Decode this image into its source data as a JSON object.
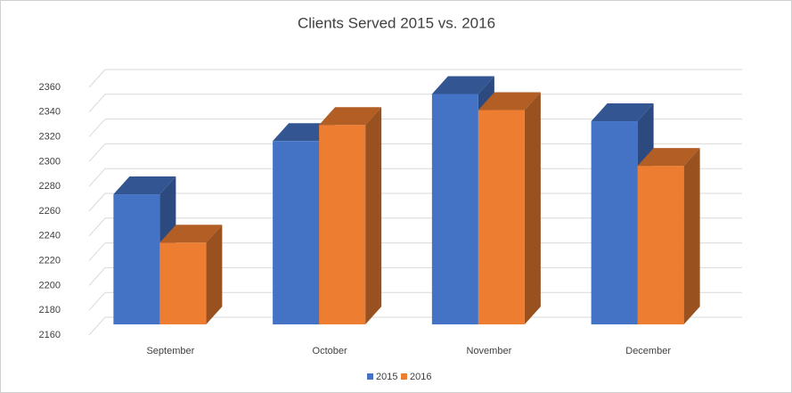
{
  "chart_data": {
    "type": "bar3d",
    "title": "Clients Served 2015 vs. 2016",
    "categories": [
      "September",
      "October",
      "November",
      "December"
    ],
    "series": [
      {
        "name": "2015",
        "color": "#4472c4",
        "values": [
          2265,
          2308,
          2346,
          2324
        ]
      },
      {
        "name": "2016",
        "color": "#ed7d31",
        "values": [
          2226,
          2321,
          2333,
          2288
        ]
      }
    ],
    "ylim": [
      2160,
      2360
    ],
    "yticks": [
      2160,
      2180,
      2200,
      2220,
      2240,
      2260,
      2280,
      2300,
      2320,
      2340,
      2360
    ],
    "grid": true,
    "legend": "bottom"
  }
}
